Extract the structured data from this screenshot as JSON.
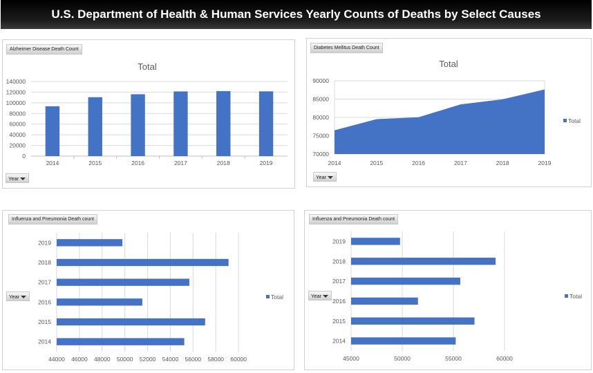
{
  "header": {
    "title": "U.S. Department of Health & Human Services Yearly Counts of Deaths by Select Causes"
  },
  "colors": {
    "series": "#4472c4",
    "grid": "#d9d9d9",
    "axis": "#bfbfbf",
    "text": "#595959"
  },
  "chart_data": [
    {
      "type": "bar",
      "panel_label": "Alzheimer Disease Death Count",
      "filter_label": "Year",
      "title": "Total",
      "categories": [
        "2014",
        "2015",
        "2016",
        "2017",
        "2018",
        "2019"
      ],
      "series": [
        {
          "name": "Total",
          "values": [
            93541,
            110561,
            116103,
            121404,
            122019,
            121499
          ]
        }
      ],
      "ylim": [
        0,
        140000
      ],
      "yticks": [
        0,
        20000,
        40000,
        60000,
        80000,
        100000,
        120000,
        140000
      ],
      "xlabel": "",
      "ylabel": "",
      "grid": true,
      "legend": "none"
    },
    {
      "type": "area",
      "panel_label": "Diabetes Mellitus Death Count",
      "filter_label": "Year",
      "title": "Total",
      "categories": [
        "2014",
        "2015",
        "2016",
        "2017",
        "2018",
        "2019"
      ],
      "series": [
        {
          "name": "Total",
          "values": [
            76488,
            79535,
            80058,
            83564,
            84946,
            87647
          ]
        }
      ],
      "ylim": [
        70000,
        90000
      ],
      "yticks": [
        70000,
        75000,
        80000,
        85000,
        90000
      ],
      "xlabel": "",
      "ylabel": "",
      "grid": true,
      "legend": "right"
    },
    {
      "type": "bar",
      "orientation": "horizontal",
      "panel_label": "Influenza and Pneumonia Death count",
      "filter_label": "Year",
      "categories": [
        "2019",
        "2018",
        "2017",
        "2016",
        "2015",
        "2014"
      ],
      "series": [
        {
          "name": "Total",
          "values": [
            49783,
            59120,
            55672,
            51537,
            57062,
            55227
          ]
        }
      ],
      "xlim": [
        44000,
        62000
      ],
      "xticks": [
        44000,
        46000,
        48000,
        50000,
        52000,
        54000,
        56000,
        58000,
        60000
      ],
      "xlabel": "",
      "ylabel": "",
      "grid": true,
      "legend": "right"
    },
    {
      "type": "bar",
      "orientation": "horizontal",
      "panel_label": "Influenza and Pneumonia Death count",
      "filter_label": "Year",
      "categories": [
        "2019",
        "2018",
        "2017",
        "2016",
        "2015",
        "2014"
      ],
      "series": [
        {
          "name": "Total",
          "values": [
            49783,
            59120,
            55672,
            51537,
            57062,
            55227
          ]
        }
      ],
      "xlim": [
        45000,
        62500
      ],
      "xticks": [
        45000,
        50000,
        55000,
        60000
      ],
      "xlabel": "",
      "ylabel": "",
      "grid": true,
      "legend": "right"
    }
  ]
}
